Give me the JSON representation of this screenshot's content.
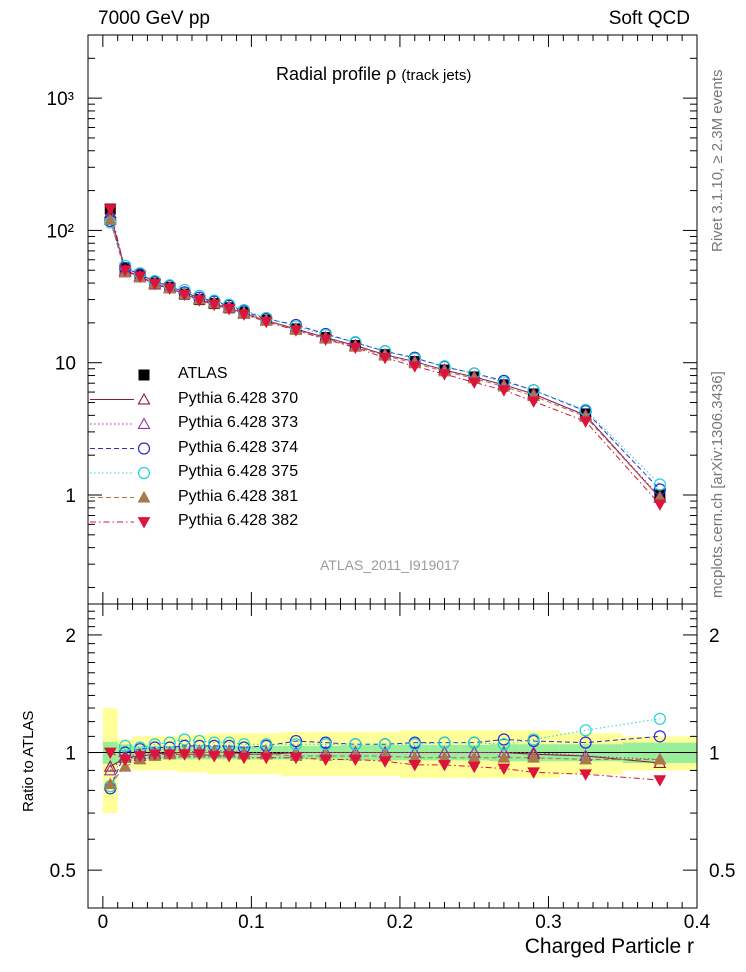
{
  "header": {
    "left": "7000 GeV pp",
    "right": "Soft QCD"
  },
  "title_main": "Radial profile  ρ",
  "title_sub": "(track jets)",
  "side_labels": {
    "rivet": "Rivet 3.1.10, ≥ 2.3M events",
    "source": "mcplots.cern.ch [arXiv:1306.3436]"
  },
  "watermark": "ATLAS_2011_I919017",
  "chart_data": [
    {
      "type": "scatter",
      "panel": "main",
      "yscale": "log",
      "xlim": [
        -0.01,
        0.4
      ],
      "ylim": [
        0.15,
        3000
      ],
      "yticklabels": [
        "1",
        "10",
        "10²",
        "10³"
      ],
      "x": [
        0.005,
        0.015,
        0.025,
        0.035,
        0.045,
        0.055,
        0.065,
        0.075,
        0.085,
        0.095,
        0.11,
        0.13,
        0.15,
        0.17,
        0.19,
        0.21,
        0.23,
        0.25,
        0.27,
        0.29,
        0.325,
        0.375
      ],
      "series": [
        {
          "name": "ATLAS",
          "color": "#000000",
          "marker": "square-filled",
          "line": "none",
          "values": [
            145,
            52,
            46,
            40,
            37,
            33,
            30,
            28,
            26,
            24,
            21,
            18,
            15.5,
            13.5,
            11.5,
            10.2,
            8.8,
            7.8,
            6.8,
            5.8,
            4.1,
            1.0
          ],
          "band": true
        },
        {
          "name": "Pythia 6.428 370",
          "color": "#8b1a2b",
          "marker": "triangle-open",
          "line": "solid",
          "values": [
            135,
            49,
            45,
            39,
            36.5,
            33,
            30,
            28,
            26,
            23.5,
            20.8,
            18,
            15.5,
            13.5,
            11.5,
            10.2,
            8.8,
            7.8,
            6.8,
            5.8,
            4.0,
            0.95
          ]
        },
        {
          "name": "Pythia 6.428 373",
          "color": "#9a2fb0",
          "marker": "triangle-open",
          "line": "dotted",
          "values": [
            130,
            50,
            45,
            40,
            37,
            33,
            30.5,
            28.5,
            26.5,
            24,
            21,
            18,
            15.5,
            13.5,
            11.5,
            10.2,
            8.8,
            7.8,
            6.8,
            5.8,
            4.0,
            0.97
          ]
        },
        {
          "name": "Pythia 6.428 374",
          "color": "#2a2ad8",
          "marker": "circle-open",
          "line": "dashed",
          "values": [
            118,
            52,
            46.5,
            41,
            38,
            34,
            31,
            29,
            27,
            24.5,
            21.5,
            19.3,
            16.5,
            14.2,
            12.2,
            10.9,
            9.3,
            8.3,
            7.3,
            6.2,
            4.3,
            1.1
          ]
        },
        {
          "name": "Pythia 6.428 375",
          "color": "#20d4d4",
          "marker": "circle-open",
          "line": "dotted",
          "values": [
            115,
            54,
            47.5,
            41.5,
            38.5,
            35.5,
            32,
            29.5,
            27.5,
            25,
            21.8,
            18.8,
            16.2,
            14.3,
            12.2,
            10.7,
            9.4,
            8.3,
            7.1,
            6.2,
            4.4,
            1.2
          ]
        },
        {
          "name": "Pythia 6.428 381",
          "color": "#a8794a",
          "marker": "triangle-filled",
          "line": "dashed",
          "values": [
            120,
            48,
            44,
            39.5,
            36.5,
            33,
            30,
            28,
            26,
            23.8,
            20.8,
            17.7,
            15.2,
            13.2,
            11.3,
            9.9,
            8.6,
            7.6,
            6.6,
            5.6,
            3.9,
            0.95
          ]
        },
        {
          "name": "Pythia 6.428 382",
          "color": "#dc143c",
          "marker": "triangle-down-filled",
          "line": "dashdot",
          "values": [
            145,
            50,
            45,
            39.5,
            36.5,
            32.7,
            29.7,
            27.5,
            25.5,
            23.2,
            20.4,
            17.6,
            15,
            13,
            10.9,
            9.4,
            8.2,
            7.1,
            6.2,
            5.1,
            3.6,
            0.85
          ]
        }
      ]
    },
    {
      "type": "scatter",
      "panel": "ratio",
      "ylabel": "Ratio to ATLAS",
      "xlabel": "Charged Particle r",
      "xlim": [
        -0.01,
        0.4
      ],
      "ylim": [
        0.4,
        2.4
      ],
      "xticklabels": [
        "0",
        "0.1",
        "0.2",
        "0.3",
        "0.4"
      ],
      "yticklabels": [
        "0.5",
        "1",
        "2"
      ],
      "x": [
        0.005,
        0.015,
        0.025,
        0.035,
        0.045,
        0.055,
        0.065,
        0.075,
        0.085,
        0.095,
        0.11,
        0.13,
        0.15,
        0.17,
        0.19,
        0.21,
        0.23,
        0.25,
        0.27,
        0.29,
        0.325,
        0.375
      ],
      "band_inner": [
        0.065,
        0.05,
        0.04,
        0.04,
        0.04,
        0.04,
        0.04,
        0.04,
        0.04,
        0.04,
        0.04,
        0.04,
        0.04,
        0.045,
        0.045,
        0.045,
        0.045,
        0.045,
        0.05,
        0.05,
        0.05,
        0.06
      ],
      "band_outer": [
        0.3,
        0.08,
        0.1,
        0.1,
        0.1,
        0.11,
        0.11,
        0.12,
        0.12,
        0.12,
        0.12,
        0.13,
        0.13,
        0.13,
        0.13,
        0.14,
        0.14,
        0.14,
        0.14,
        0.14,
        0.12,
        0.1
      ],
      "series": [
        {
          "name": "Pythia 6.428 370",
          "color": "#8b1a2b",
          "marker": "triangle-open",
          "line": "solid",
          "values": [
            0.92,
            0.97,
            0.98,
            0.99,
            1.0,
            1.0,
            1.0,
            1.0,
            1.0,
            0.99,
            0.99,
            1.0,
            1.0,
            1.0,
            1.0,
            1.0,
            1.0,
            1.0,
            1.0,
            0.99,
            0.98,
            0.94
          ]
        },
        {
          "name": "Pythia 6.428 373",
          "color": "#9a2fb0",
          "marker": "triangle-open",
          "line": "dotted",
          "values": [
            0.9,
            0.98,
            0.99,
            1.0,
            1.0,
            1.0,
            1.01,
            1.01,
            1.01,
            1.0,
            1.0,
            1.0,
            1.0,
            1.0,
            1.0,
            1.0,
            1.0,
            1.0,
            1.0,
            1.0,
            0.98,
            0.96
          ]
        },
        {
          "name": "Pythia 6.428 374",
          "color": "#2a2ad8",
          "marker": "circle-open",
          "line": "dashed",
          "values": [
            0.81,
            1.0,
            1.02,
            1.03,
            1.03,
            1.04,
            1.04,
            1.04,
            1.04,
            1.03,
            1.04,
            1.07,
            1.06,
            1.05,
            1.05,
            1.06,
            1.06,
            1.06,
            1.08,
            1.07,
            1.06,
            1.1
          ]
        },
        {
          "name": "Pythia 6.428 375",
          "color": "#20d4d4",
          "marker": "circle-open",
          "line": "dotted",
          "values": [
            0.82,
            1.04,
            1.03,
            1.05,
            1.06,
            1.08,
            1.07,
            1.06,
            1.06,
            1.05,
            1.05,
            1.05,
            1.05,
            1.05,
            1.05,
            1.05,
            1.06,
            1.06,
            1.05,
            1.08,
            1.14,
            1.22
          ]
        },
        {
          "name": "Pythia 6.428 381",
          "color": "#a8794a",
          "marker": "triangle-filled",
          "line": "dashed",
          "values": [
            0.83,
            0.92,
            0.96,
            0.98,
            0.99,
            1.0,
            1.0,
            1.0,
            1.0,
            0.99,
            0.99,
            0.98,
            0.98,
            0.98,
            0.98,
            0.97,
            0.97,
            0.97,
            0.97,
            0.97,
            0.96,
            0.96
          ]
        },
        {
          "name": "Pythia 6.428 382",
          "color": "#dc143c",
          "marker": "triangle-down-filled",
          "line": "dashdot",
          "values": [
            1.0,
            0.96,
            0.98,
            0.99,
            0.99,
            0.99,
            0.99,
            0.98,
            0.98,
            0.97,
            0.97,
            0.97,
            0.96,
            0.96,
            0.95,
            0.93,
            0.93,
            0.92,
            0.91,
            0.89,
            0.88,
            0.85
          ]
        }
      ]
    }
  ]
}
